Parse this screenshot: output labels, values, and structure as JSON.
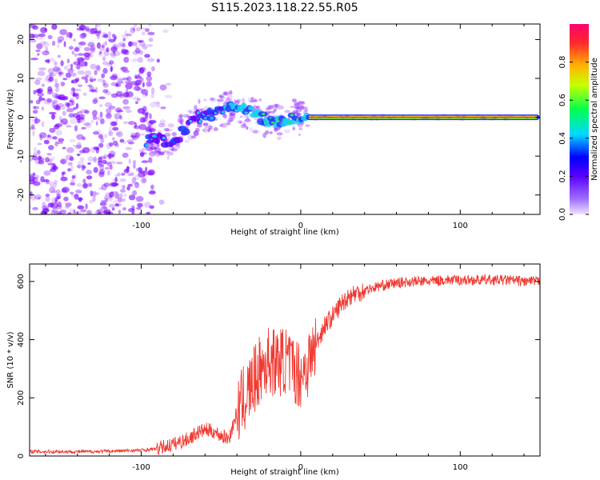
{
  "figure_title": "S115.2023.118.22.55.R05",
  "colors": {
    "snr_line": "#f03a32",
    "spectrum_points": "#7b00ff",
    "ridge": [
      "#ff2a4a",
      "#ffd400",
      "#35e05a",
      "#18d0f0",
      "#1f3cff",
      "#6a00ff"
    ]
  },
  "chart_data": [
    {
      "type": "heatmap",
      "title": "",
      "xlabel": "Height of straight line (km)",
      "ylabel": "Frequency (Hz)",
      "xlim": [
        -170,
        150
      ],
      "ylim": [
        -25,
        24
      ],
      "x_ticks": [
        -100,
        0,
        100
      ],
      "x_tick_labels": [
        "-100",
        "0",
        "100"
      ],
      "y_ticks": [
        -20,
        -10,
        0,
        10,
        20
      ],
      "y_tick_labels": [
        "-20",
        "-10",
        "0",
        "10",
        "20"
      ],
      "grid": false,
      "ridge": {
        "x": [
          -95,
          -90,
          -85,
          -80,
          -75,
          -70,
          -65,
          -60,
          -55,
          -50,
          -45,
          -40,
          -35,
          -30,
          -25,
          -20,
          -15,
          -10,
          -5,
          0,
          5,
          150
        ],
        "y": [
          -6,
          -5,
          -6,
          -6,
          -4,
          -2,
          0,
          0,
          1,
          2,
          2,
          3,
          2,
          1,
          0,
          -1,
          -1,
          -1,
          0,
          0,
          0,
          0
        ]
      },
      "colorbar": {
        "label": "Normalized spectral amplitude",
        "range": [
          0,
          1
        ],
        "ticks": [
          0.0,
          0.2,
          0.4,
          0.6,
          0.8
        ],
        "tick_labels": [
          "0.0",
          "0.2",
          "0.4",
          "0.6",
          "0.8"
        ]
      }
    },
    {
      "type": "line",
      "title": "",
      "xlabel": "Height of straight line (km)",
      "ylabel": "SNR (10 * v/v)",
      "xlim": [
        -170,
        150
      ],
      "ylim": [
        0,
        660
      ],
      "x_ticks": [
        -100,
        0,
        100
      ],
      "x_tick_labels": [
        "-100",
        "0",
        "100"
      ],
      "y_ticks": [
        0,
        200,
        400,
        600
      ],
      "y_tick_labels": [
        "0",
        "200",
        "400",
        "600"
      ],
      "grid": false,
      "series": [
        {
          "x": [
            -170,
            -150,
            -130,
            -110,
            -100,
            -90,
            -80,
            -70,
            -65,
            -60,
            -55,
            -50,
            -45,
            -40,
            -35,
            -30,
            -25,
            -20,
            -15,
            -10,
            -5,
            0,
            5,
            10,
            15,
            20,
            25,
            30,
            40,
            50,
            60,
            70,
            80,
            90,
            100,
            110,
            120,
            130,
            140,
            150
          ],
          "values": [
            15,
            15,
            15,
            18,
            20,
            25,
            40,
            60,
            80,
            90,
            85,
            70,
            60,
            150,
            200,
            250,
            300,
            330,
            320,
            330,
            300,
            280,
            320,
            390,
            450,
            480,
            520,
            550,
            570,
            585,
            595,
            600,
            600,
            605,
            605,
            605,
            605,
            605,
            600,
            600
          ]
        }
      ]
    }
  ]
}
